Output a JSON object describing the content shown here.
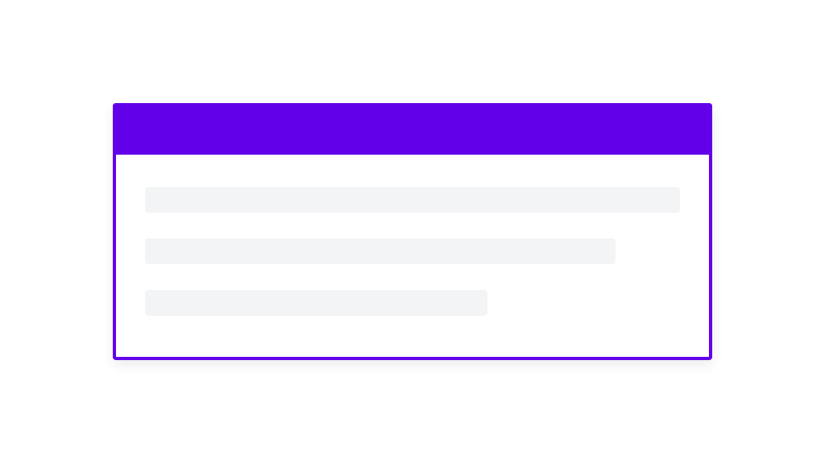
{
  "card": {
    "accent_color": "#6200EA",
    "skeleton_color": "#F3F4F6",
    "skeleton_lines": [
      {
        "fill_percent": 100
      },
      {
        "fill_percent": 88
      },
      {
        "fill_percent": 64
      }
    ]
  }
}
